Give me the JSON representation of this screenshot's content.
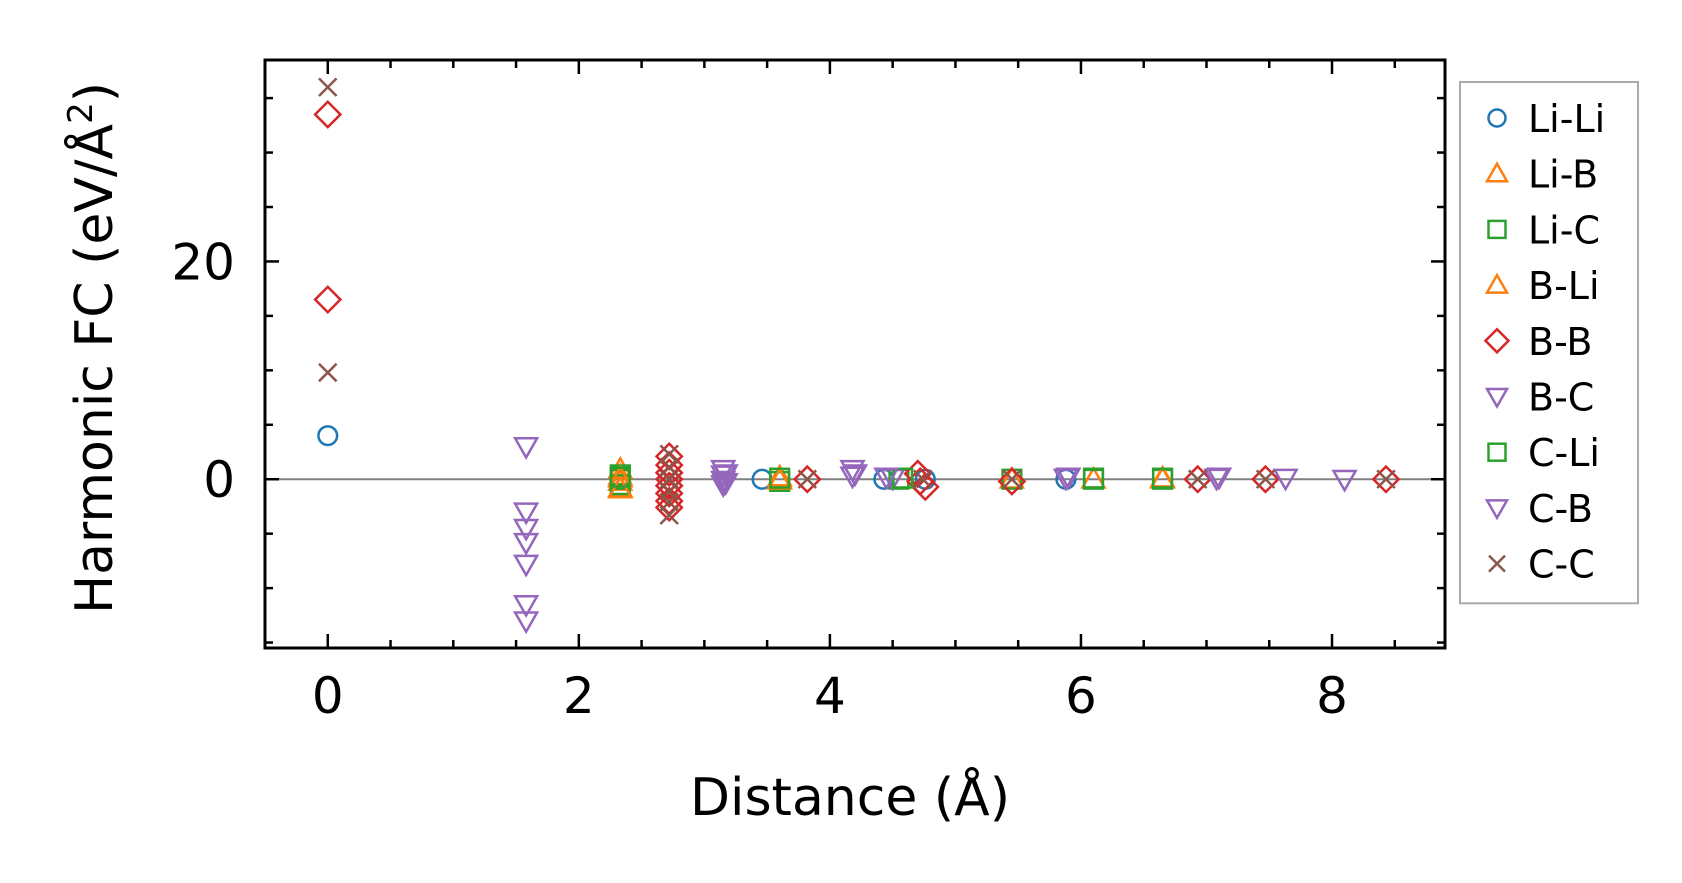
{
  "chart_data": {
    "type": "scatter",
    "title": "",
    "xlabel": "Distance (Å)",
    "ylabel_main": "Harmonic FC (eV/Å",
    "ylabel_sup": "2",
    "ylabel_close": ")",
    "xlim": [
      -0.5,
      8.9
    ],
    "ylim": [
      -15.5,
      38.5
    ],
    "xticks": [
      0,
      2,
      4,
      6,
      8
    ],
    "xtick_labels": [
      "0",
      "2",
      "4",
      "6",
      "8"
    ],
    "yticks": [
      0,
      20
    ],
    "ytick_labels": [
      "0",
      "20"
    ],
    "x_minor_step": 0.5,
    "y_minor_step": 5,
    "zero_line": true,
    "grid": false,
    "legend_position": "outside-right",
    "series": [
      {
        "name": "Li-Li",
        "marker": "circle",
        "color": "#1f77b4",
        "points": [
          [
            0,
            4.0
          ],
          [
            3.46,
            0
          ],
          [
            4.43,
            0
          ],
          [
            4.76,
            0
          ],
          [
            5.88,
            0
          ]
        ]
      },
      {
        "name": "Li-B",
        "marker": "triangle-up",
        "color": "#ff7f0e",
        "points": [
          [
            2.33,
            0.9
          ],
          [
            2.33,
            0.3
          ],
          [
            2.33,
            -0.2
          ],
          [
            2.33,
            -0.8
          ],
          [
            3.6,
            0
          ],
          [
            3.6,
            0.2
          ],
          [
            5.45,
            0
          ],
          [
            6.1,
            0
          ],
          [
            6.65,
            0
          ]
        ]
      },
      {
        "name": "Li-C",
        "marker": "square",
        "color": "#2ca02c",
        "points": [
          [
            2.33,
            0.4
          ],
          [
            2.33,
            -0.5
          ],
          [
            2.33,
            0
          ],
          [
            3.6,
            -0.2
          ],
          [
            4.55,
            0
          ],
          [
            5.45,
            0
          ],
          [
            6.1,
            0
          ],
          [
            6.65,
            0
          ]
        ]
      },
      {
        "name": "B-Li",
        "marker": "triangle-up",
        "color": "#ff7f0e",
        "points": [
          [
            2.33,
            -0.9
          ],
          [
            2.33,
            0.1
          ],
          [
            3.6,
            -0.1
          ],
          [
            6.65,
            0.1
          ]
        ]
      },
      {
        "name": "B-B",
        "marker": "diamond",
        "color": "#d62728",
        "points": [
          [
            0,
            33.5
          ],
          [
            0,
            16.5
          ],
          [
            2.72,
            2.1
          ],
          [
            2.72,
            1.3
          ],
          [
            2.72,
            0.6
          ],
          [
            2.72,
            0
          ],
          [
            2.72,
            -0.6
          ],
          [
            2.72,
            -1.3
          ],
          [
            2.72,
            -2.0
          ],
          [
            2.72,
            -2.6
          ],
          [
            3.82,
            0
          ],
          [
            4.7,
            0.5
          ],
          [
            4.72,
            -0.2
          ],
          [
            4.76,
            -0.7
          ],
          [
            5.45,
            -0.2
          ],
          [
            6.93,
            0
          ],
          [
            7.47,
            0
          ],
          [
            8.43,
            0
          ]
        ]
      },
      {
        "name": "B-C",
        "marker": "triangle-down",
        "color": "#9467bd",
        "points": [
          [
            1.58,
            3.0
          ],
          [
            1.58,
            -3.0
          ],
          [
            1.58,
            -4.5
          ],
          [
            1.58,
            -5.8
          ],
          [
            1.58,
            -7.8
          ],
          [
            1.58,
            -11.5
          ],
          [
            1.58,
            -13.0
          ],
          [
            3.15,
            0.9
          ],
          [
            3.15,
            0.4
          ],
          [
            3.15,
            -0.1
          ],
          [
            3.15,
            -0.5
          ],
          [
            4.18,
            0.9
          ],
          [
            4.18,
            0.3
          ],
          [
            4.5,
            0.1
          ],
          [
            5.88,
            0.1
          ],
          [
            7.08,
            0.1
          ],
          [
            7.63,
            0.1
          ],
          [
            8.1,
            0
          ]
        ]
      },
      {
        "name": "C-Li",
        "marker": "square",
        "color": "#2ca02c",
        "points": [
          [
            2.33,
            0.2
          ],
          [
            3.6,
            0.1
          ],
          [
            4.58,
            0.1
          ],
          [
            6.1,
            0.1
          ],
          [
            6.65,
            0.1
          ]
        ]
      },
      {
        "name": "C-B",
        "marker": "triangle-down",
        "color": "#9467bd",
        "points": [
          [
            3.17,
            0.5
          ],
          [
            3.17,
            -0.3
          ],
          [
            4.2,
            0.5
          ],
          [
            4.45,
            0.2
          ],
          [
            5.9,
            0.2
          ],
          [
            7.1,
            0.2
          ]
        ]
      },
      {
        "name": "C-C",
        "marker": "x",
        "color": "#8c564b",
        "points": [
          [
            0,
            36.0
          ],
          [
            0,
            9.8
          ],
          [
            2.72,
            2.3
          ],
          [
            2.72,
            1.1
          ],
          [
            2.72,
            0
          ],
          [
            2.72,
            -1.1
          ],
          [
            2.72,
            -2.1
          ],
          [
            2.72,
            -3.3
          ],
          [
            3.82,
            0
          ],
          [
            4.74,
            0
          ],
          [
            5.45,
            0
          ],
          [
            6.93,
            0
          ],
          [
            7.47,
            0
          ],
          [
            8.43,
            0
          ]
        ]
      }
    ]
  }
}
